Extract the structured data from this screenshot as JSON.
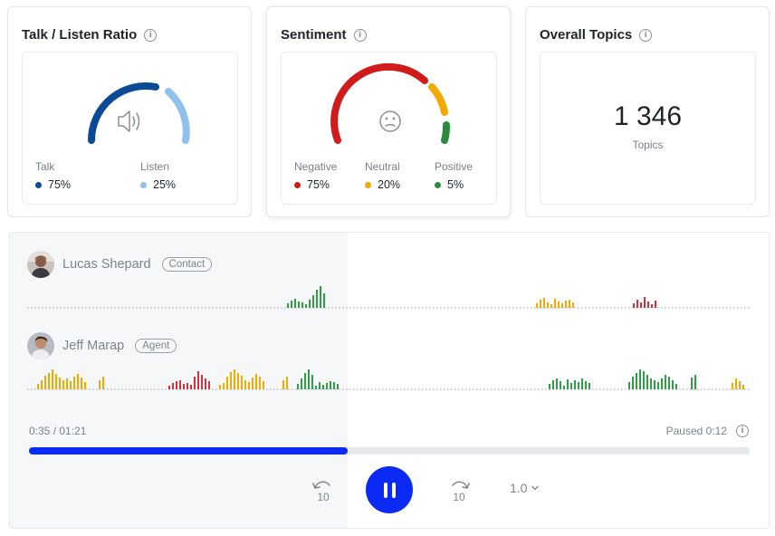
{
  "talk_listen": {
    "title": "Talk / Listen Ratio",
    "info_icon": "info-icon",
    "center_icon": "speaker-icon",
    "talk": {
      "label": "Talk",
      "value": "75%",
      "color": "#0b4a94"
    },
    "listen": {
      "label": "Listen",
      "value": "25%",
      "color": "#8ec0f0"
    }
  },
  "sentiment": {
    "title": "Sentiment",
    "info_icon": "info-icon",
    "center_icon": "neutral-face-icon",
    "negative": {
      "label": "Negative",
      "value": "75%",
      "color": "#d11a1a"
    },
    "neutral": {
      "label": "Neutral",
      "value": "20%",
      "color": "#f2a900"
    },
    "positive": {
      "label": "Positive",
      "value": "5%",
      "color": "#2b8a3e"
    }
  },
  "overall_topics": {
    "title": "Overall Topics",
    "info_icon": "info-icon",
    "count": "1 346",
    "label": "Topics"
  },
  "player": {
    "speakers": [
      {
        "name": "Lucas Shepard",
        "role": "Contact"
      },
      {
        "name": "Jeff Marap",
        "role": "Agent"
      }
    ],
    "current_time": "0:35 / 01:21",
    "status": "Paused 0:12",
    "progress": 0.442,
    "rewind_label": "10",
    "forward_label": "10",
    "speed": "1.0",
    "accent_color": "#0b2bf5"
  }
}
